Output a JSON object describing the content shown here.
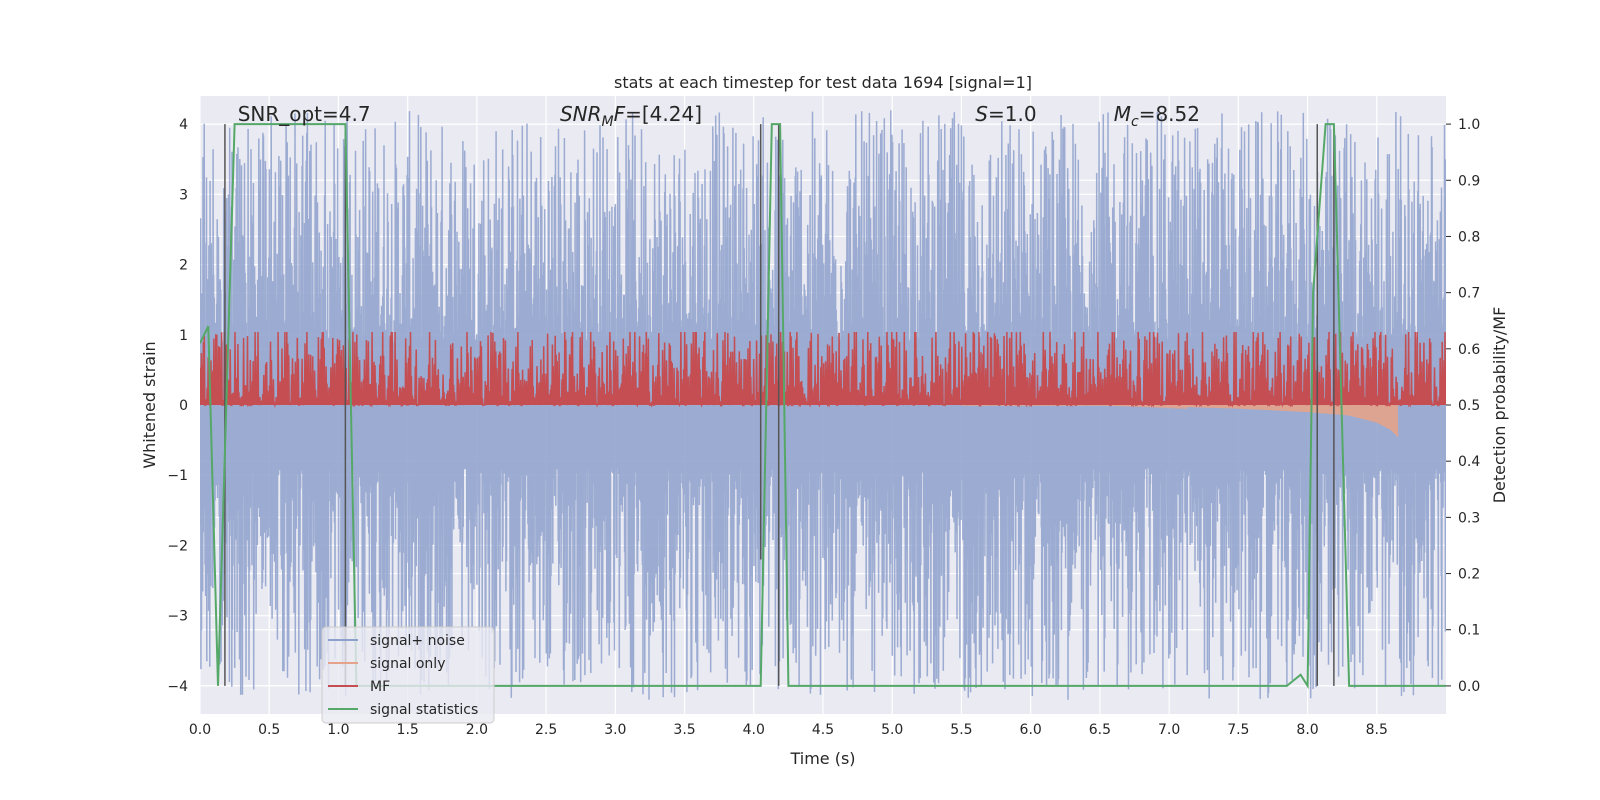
{
  "chart_data": {
    "type": "line",
    "title": "stats at each timestep for test data 1694 [signal=1]",
    "xlabel": "Time (s)",
    "ylabel_left": "Whitened strain",
    "ylabel_right": "Detection probability/MF",
    "xlim": [
      0.0,
      9.0
    ],
    "ylim_left": [
      -4.4,
      4.4
    ],
    "ylim_right": [
      -0.05,
      1.05
    ],
    "xticks": [
      "0.0",
      "0.5",
      "1.0",
      "1.5",
      "2.0",
      "2.5",
      "3.0",
      "3.5",
      "4.0",
      "4.5",
      "5.0",
      "5.5",
      "6.0",
      "6.5",
      "7.0",
      "7.5",
      "8.0",
      "8.5"
    ],
    "yticks_left": [
      "−4",
      "−3",
      "−2",
      "−1",
      "0",
      "1",
      "2",
      "3",
      "4"
    ],
    "yticks_right": [
      "0.0",
      "0.1",
      "0.2",
      "0.3",
      "0.4",
      "0.5",
      "0.6",
      "0.7",
      "0.8",
      "0.9",
      "1.0"
    ],
    "grid": true,
    "legend_position": "lower-left",
    "annotations": [
      {
        "text": "SNR_opt=4.7",
        "x": 0.2
      },
      {
        "text": "SNR_MF=[4.24]",
        "x": 2.6
      },
      {
        "text": "S=1.0",
        "x": 5.6
      },
      {
        "text": "M_c=8.52",
        "x": 6.6
      }
    ],
    "series": [
      {
        "name": "signal+ noise",
        "axis": "left",
        "color": "#8da0cb",
        "style": "noise band approx. ±2.5 with spikes to ±4"
      },
      {
        "name": "signal only",
        "axis": "left",
        "color": "#e6a38b",
        "x": [
          5.5,
          6.5,
          7.0,
          7.5,
          8.0,
          8.3,
          8.5,
          8.6,
          8.65
        ],
        "y": [
          0.0,
          0.0,
          -0.02,
          -0.05,
          -0.1,
          -0.15,
          -0.25,
          -0.35,
          -0.45
        ]
      },
      {
        "name": "MF",
        "axis": "right",
        "color": "#c44e52",
        "baseline": 0.5,
        "range": [
          0.5,
          0.62
        ]
      },
      {
        "name": "signal statistics",
        "axis": "right",
        "color": "#55a868",
        "x": [
          0.0,
          0.06,
          0.13,
          0.25,
          1.05,
          1.13,
          4.05,
          4.13,
          4.19,
          4.25,
          7.85,
          7.95,
          8.0,
          8.04,
          8.13,
          8.19,
          8.3,
          9.0
        ],
        "y": [
          0.61,
          0.64,
          0.0,
          1.0,
          1.0,
          0.0,
          0.0,
          1.0,
          1.0,
          0.0,
          0.0,
          0.02,
          0.0,
          0.7,
          1.0,
          1.0,
          0.0,
          0.0
        ]
      }
    ],
    "vertical_lines": [
      {
        "x": 0.18,
        "y_left": [
          -4.0,
          4.0
        ]
      },
      {
        "x": 1.05,
        "y_left": [
          -4.0,
          4.0
        ]
      },
      {
        "x": 4.05,
        "y_left": [
          -2.2,
          4.0
        ]
      },
      {
        "x": 4.18,
        "y_left": [
          -4.0,
          4.0
        ]
      },
      {
        "x": 8.07,
        "y_left": [
          -4.0,
          4.0
        ]
      },
      {
        "x": 8.19,
        "y_left": [
          -4.0,
          4.0
        ]
      }
    ]
  }
}
